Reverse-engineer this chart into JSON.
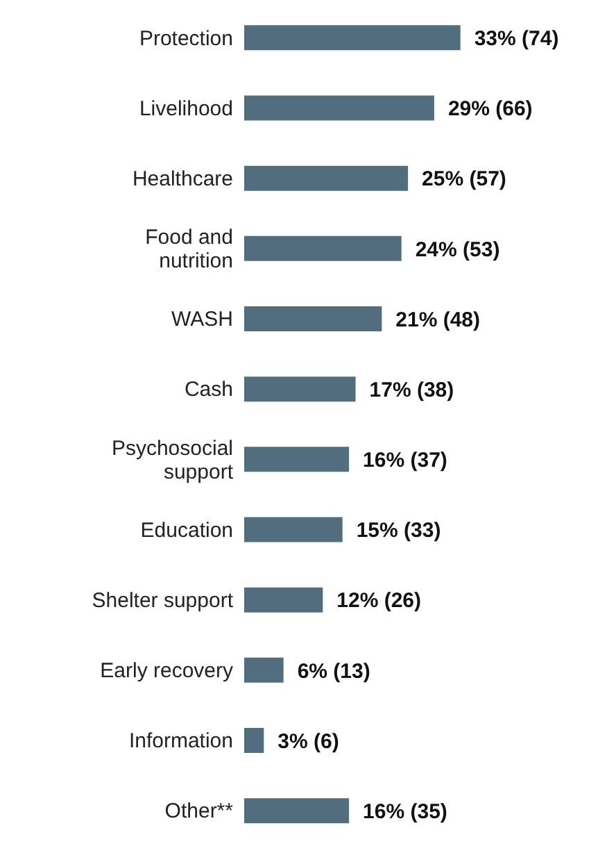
{
  "chart_data": {
    "type": "bar",
    "orientation": "horizontal",
    "categories": [
      "Protection",
      "Livelihood",
      "Healthcare",
      "Food and nutrition",
      "WASH",
      "Cash",
      "Psychosocial support",
      "Education",
      "Shelter support",
      "Early recovery",
      "Information",
      "Other**"
    ],
    "values": [
      33,
      29,
      25,
      24,
      21,
      17,
      16,
      15,
      12,
      6,
      3,
      16
    ],
    "value_labels": [
      "33% (74)",
      "29% (66)",
      "25% (57)",
      "24% (53)",
      "21% (48)",
      "17% (38)",
      "16% (37)",
      "15% (33)",
      "12% (26)",
      "6% (13)",
      "3% (6)",
      "16% (35)"
    ],
    "color": "#526e7e",
    "xlim": [
      0,
      54
    ],
    "tick_labels": "y",
    "grid": false,
    "legend": false
  }
}
